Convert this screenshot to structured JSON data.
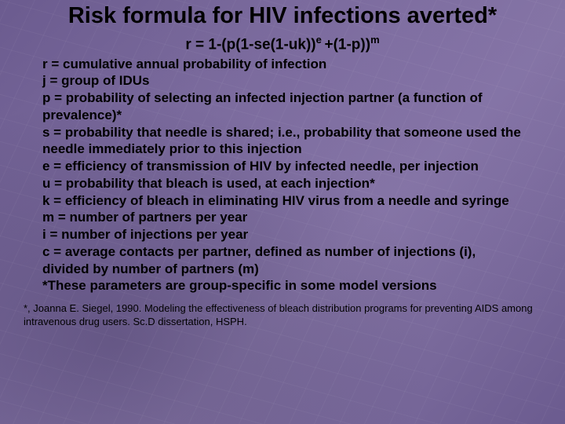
{
  "colors": {
    "background_base": "#6e5d93",
    "gradient_stops": [
      "#6b5b8f",
      "#7a6a9c",
      "#8575a5",
      "#6b5b8f"
    ],
    "text_color": "#000000"
  },
  "typography": {
    "title_fontsize": 29,
    "formula_fontsize": 19,
    "body_fontsize": 17,
    "citation_fontsize": 13,
    "font_family": "Arial",
    "body_weight": "bold"
  },
  "title": "Risk formula for HIV infections averted*",
  "formula": {
    "base1": "r = 1-(p(1-se(1-uk))",
    "sup1": "e ",
    "mid": "+(1-p))",
    "sup2": "m"
  },
  "definitions": [
    "r = cumulative annual probability of infection",
    "j = group of IDUs",
    "p = probability of selecting an infected injection partner (a function of prevalence)*",
    "s = probability that needle is shared; i.e., probability that someone used the needle immediately prior to this injection",
    "e = efficiency of transmission of HIV by infected needle, per injection",
    "u = probability that bleach is used, at each injection*",
    "k = efficiency of bleach in eliminating HIV virus from a needle and syringe",
    "m = number of partners per year",
    "i = number of injections per year",
    "c = average contacts per partner, defined as number of injections (i), divided by number of partners (m)",
    "*These parameters are group-specific in some model versions"
  ],
  "citation": "*, Joanna E. Siegel, 1990. Modeling the effectiveness of bleach distribution programs for preventing AIDS among intravenous drug users. Sc.D dissertation, HSPH."
}
